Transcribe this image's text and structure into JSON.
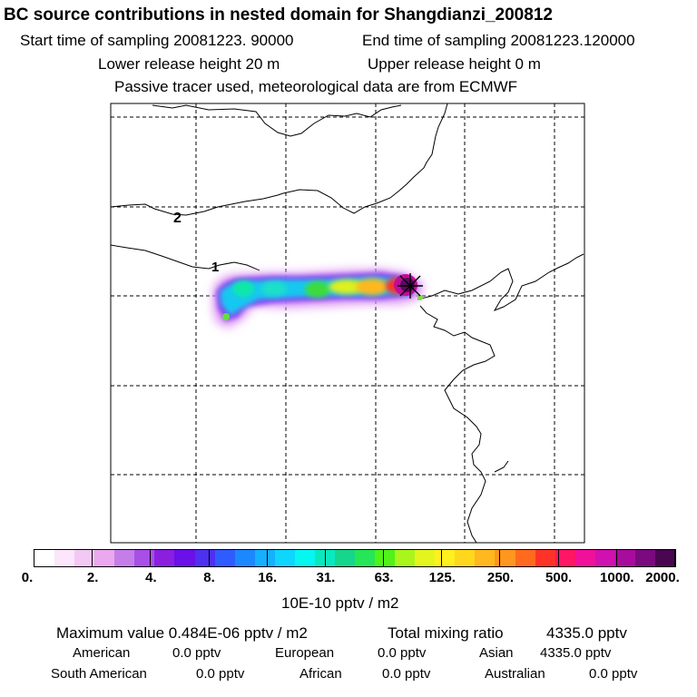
{
  "header": {
    "title": "BC  source contributions in nested domain for Shangdianzi_200812",
    "start_label": "Start time of sampling 20081223. 90000",
    "end_label": "End time of sampling 20081223.120000",
    "lower_label": "Lower release height   20 m",
    "upper_label": "Upper release height    0 m",
    "note": "Passive tracer used, meteorological data are from ECMWF"
  },
  "map": {
    "grid_labels": [
      "2",
      "1"
    ],
    "receptor_marker": "receptor-cross-icon"
  },
  "colorbar": {
    "colors": [
      "#ffffff",
      "#fbe6fb",
      "#f4c8f4",
      "#eba8ee",
      "#c47ee8",
      "#a84fe6",
      "#8a1fe0",
      "#6a10e8",
      "#4d30f0",
      "#2f5cff",
      "#1c88ff",
      "#15b0ff",
      "#0fd6ff",
      "#08f6f0",
      "#0ae8c0",
      "#16d68c",
      "#24e656",
      "#50f21a",
      "#aaf51c",
      "#e4f51e",
      "#fff01e",
      "#ffd81e",
      "#ffb81e",
      "#ff961e",
      "#ff6a1e",
      "#ff3228",
      "#ff1664",
      "#f0109a",
      "#d010b0",
      "#a80c9c",
      "#7a0a7e",
      "#4a0650"
    ],
    "tick_labels": [
      "0.",
      "2.",
      "4.",
      "8.",
      "16.",
      "31.",
      "63.",
      "125.",
      "250.",
      "500.",
      "1000.",
      "2000."
    ],
    "unit_label": "10E-10 pptv / m2"
  },
  "stats": {
    "max_label": "Maximum value  0.484E-06 pptv / m2",
    "total_label": "Total mixing ratio",
    "total_value": "4335.0 pptv",
    "regions": [
      {
        "name": "American",
        "value": "0.0 pptv"
      },
      {
        "name": "European",
        "value": "0.0 pptv"
      },
      {
        "name": "Asian",
        "value": "4335.0 pptv"
      },
      {
        "name": "South American",
        "value": "0.0 pptv"
      },
      {
        "name": "African",
        "value": "0.0 pptv"
      },
      {
        "name": "Australian",
        "value": "0.0 pptv"
      }
    ]
  }
}
